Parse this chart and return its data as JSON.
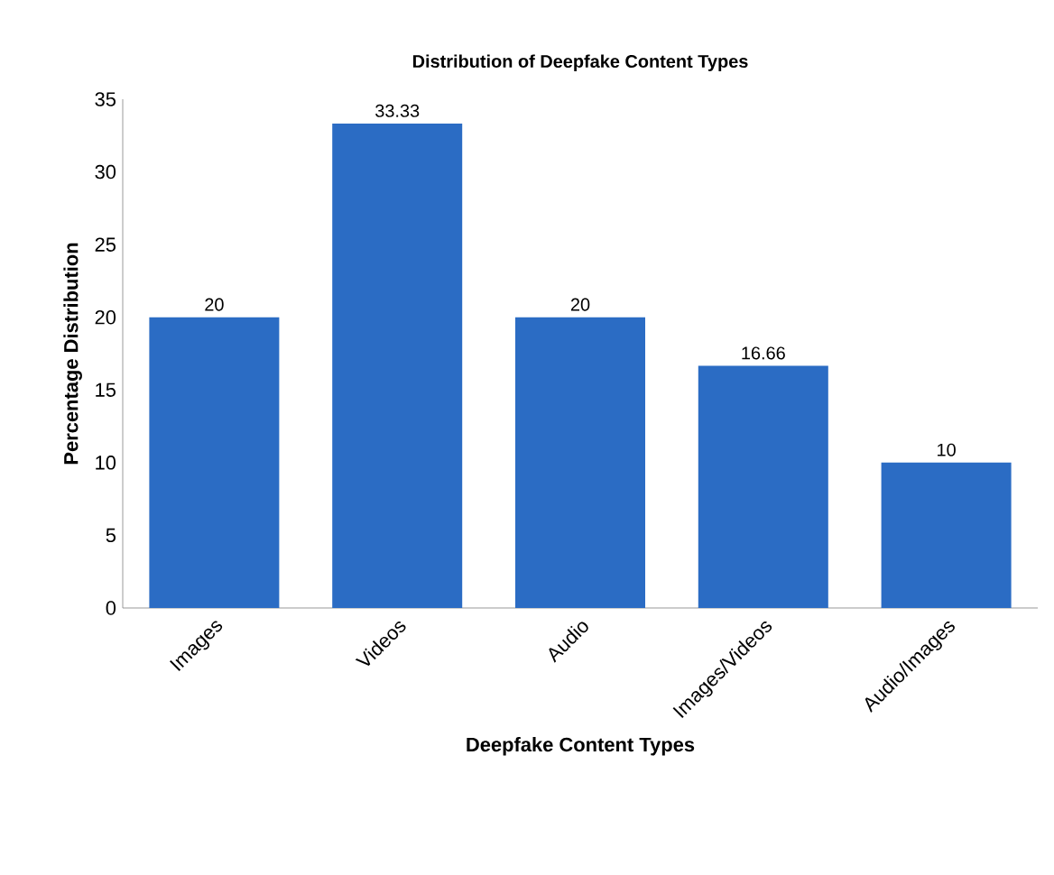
{
  "chart_data": {
    "type": "bar",
    "title": "Distribution of Deepfake Content Types",
    "xlabel": "Deepfake Content Types",
    "ylabel": "Percentage Distribution",
    "categories": [
      "Images",
      "Videos",
      "Audio",
      "Images/Videos",
      "Audio/Images"
    ],
    "values": [
      20,
      33.33,
      20,
      16.66,
      10
    ],
    "color": "#2b6cc4",
    "ylim": [
      0,
      35
    ],
    "yticks": [
      0,
      5,
      10,
      15,
      20,
      25,
      30,
      35
    ],
    "data_labels": true
  }
}
